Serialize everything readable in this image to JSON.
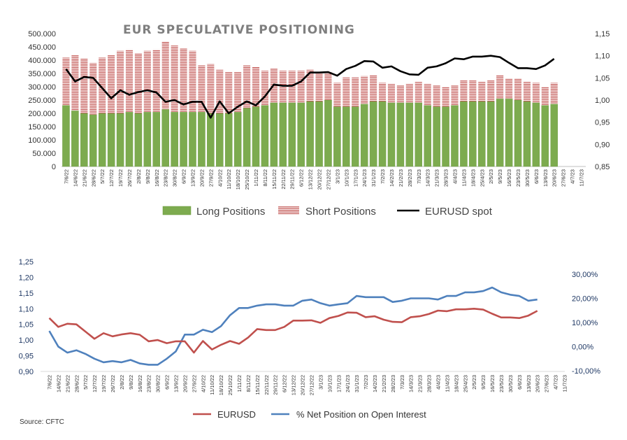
{
  "source": "Source: CFTC",
  "colors": {
    "long": "#7dab4f",
    "long_edge": "#6a9a3f",
    "short_line": "#c0504d",
    "spot": "#000000",
    "eurusd_red": "#c0504d",
    "netpos_blue": "#4f81bd"
  },
  "chart_data": [
    {
      "type": "bar",
      "title": "EUR SPECULATIVE POSITIONING",
      "stacked": true,
      "categories": [
        "7/6/22",
        "14/6/22",
        "21/6/22",
        "28/6/22",
        "5/7/22",
        "12/7/22",
        "19/7/22",
        "26/7/22",
        "2/8/22",
        "9/8/22",
        "16/8/22",
        "23/8/22",
        "30/8/22",
        "6/9/22",
        "13/9/22",
        "20/9/22",
        "27/9/22",
        "4/10/22",
        "11/10/22",
        "18/10/22",
        "25/10/22",
        "1/11/22",
        "8/11/22",
        "15/11/22",
        "22/11/22",
        "29/11/22",
        "6/12/22",
        "13/12/22",
        "20/12/22",
        "27/12/22",
        "3/1/23",
        "10/1/23",
        "17/1/23",
        "24/1/23",
        "31/1/23",
        "7/2/23",
        "14/2/23",
        "21/2/23",
        "28/2/23",
        "7/3/23",
        "14/3/23",
        "21/3/23",
        "28/3/23",
        "4/4/23",
        "11/4/23",
        "18/4/23",
        "25/4/23",
        "2/5/23",
        "9/5/23",
        "16/5/23",
        "23/5/23",
        "30/5/23",
        "6/6/23",
        "13/6/23",
        "20/6/23",
        "27/6/23",
        "4/7/23",
        "11/7/23"
      ],
      "series": [
        {
          "name": "Long Positions",
          "kind": "bar",
          "values": [
            230000,
            210000,
            200000,
            195000,
            200000,
            200000,
            200000,
            205000,
            200000,
            205000,
            205000,
            215000,
            205000,
            205000,
            205000,
            205000,
            200000,
            200000,
            200000,
            205000,
            220000,
            225000,
            230000,
            240000,
            240000,
            240000,
            240000,
            245000,
            245000,
            250000,
            225000,
            225000,
            225000,
            235000,
            245000,
            245000,
            240000,
            240000,
            240000,
            240000,
            230000,
            225000,
            225000,
            230000,
            245000,
            245000,
            245000,
            245000,
            255000,
            255000,
            250000,
            245000,
            240000,
            230000,
            235000,
            null,
            null,
            null
          ]
        },
        {
          "name": "Short Positions",
          "kind": "bar",
          "values": [
            180000,
            210000,
            205000,
            195000,
            210000,
            220000,
            235000,
            235000,
            225000,
            230000,
            235000,
            255000,
            250000,
            240000,
            230000,
            175000,
            185000,
            165000,
            155000,
            150000,
            160000,
            150000,
            130000,
            130000,
            120000,
            120000,
            120000,
            120000,
            110000,
            105000,
            90000,
            110000,
            110000,
            105000,
            100000,
            70000,
            70000,
            65000,
            70000,
            80000,
            80000,
            80000,
            75000,
            75000,
            80000,
            80000,
            75000,
            80000,
            90000,
            75000,
            80000,
            75000,
            75000,
            70000,
            80000,
            null,
            null,
            null
          ]
        },
        {
          "name": "EURUSD spot",
          "kind": "line",
          "axis": "right",
          "values": [
            1.07,
            1.042,
            1.052,
            1.05,
            1.027,
            1.004,
            1.022,
            1.012,
            1.018,
            1.022,
            1.017,
            0.996,
            1.0,
            0.99,
            0.996,
            0.996,
            0.96,
            0.997,
            0.97,
            0.985,
            0.997,
            0.988,
            1.008,
            1.035,
            1.032,
            1.032,
            1.042,
            1.062,
            1.062,
            1.063,
            1.055,
            1.07,
            1.077,
            1.088,
            1.087,
            1.073,
            1.076,
            1.065,
            1.058,
            1.057,
            1.073,
            1.076,
            1.083,
            1.094,
            1.092,
            1.098,
            1.098,
            1.1,
            1.097,
            1.084,
            1.072,
            1.072,
            1.07,
            1.078,
            1.093,
            null,
            null,
            null
          ]
        }
      ],
      "y_left": {
        "ticks": [
          "0",
          "50.000",
          "100.000",
          "150.000",
          "200.000",
          "250.000",
          "300.000",
          "350.000",
          "400.000",
          "450.000",
          "500.000"
        ],
        "range": [
          0,
          500000
        ]
      },
      "y_right": {
        "ticks": [
          "0,85",
          "0,90",
          "0,95",
          "1,00",
          "1,05",
          "1,10",
          "1,15"
        ],
        "range": [
          0.85,
          1.15
        ]
      },
      "legend": [
        "Long Positions",
        "Short Positions",
        "EURUSD spot"
      ],
      "legend_position": "bottom"
    },
    {
      "type": "line",
      "title": "",
      "categories": [
        "7/6/22",
        "14/6/22",
        "21/6/22",
        "28/6/22",
        "5/7/22",
        "12/7/22",
        "19/7/22",
        "26/7/22",
        "2/8/22",
        "9/8/22",
        "16/8/22",
        "23/8/22",
        "30/8/22",
        "6/9/22",
        "13/9/22",
        "20/9/22",
        "27/9/22",
        "4/10/22",
        "11/10/22",
        "18/10/22",
        "25/10/22",
        "1/11/22",
        "8/11/22",
        "15/11/22",
        "22/11/22",
        "29/11/22",
        "6/12/22",
        "13/12/22",
        "20/12/22",
        "27/12/22",
        "3/1/23",
        "10/1/23",
        "17/1/23",
        "24/1/23",
        "31/1/23",
        "7/2/23",
        "14/2/23",
        "21/2/23",
        "28/2/23",
        "7/3/23",
        "14/3/23",
        "21/3/23",
        "28/3/23",
        "4/4/23",
        "11/4/23",
        "18/4/23",
        "25/4/23",
        "2/5/23",
        "9/5/23",
        "16/5/23",
        "23/5/23",
        "30/5/23",
        "6/6/23",
        "13/6/23",
        "20/6/23",
        "27/6/23",
        "4/7/23",
        "11/7/23"
      ],
      "series": [
        {
          "name": "EURUSD",
          "axis": "left",
          "values": [
            1.07,
            1.042,
            1.052,
            1.05,
            1.027,
            1.004,
            1.022,
            1.012,
            1.018,
            1.022,
            1.017,
            0.996,
            1.0,
            0.99,
            0.996,
            0.996,
            0.96,
            0.997,
            0.97,
            0.985,
            0.997,
            0.988,
            1.008,
            1.035,
            1.032,
            1.032,
            1.042,
            1.062,
            1.062,
            1.063,
            1.055,
            1.07,
            1.077,
            1.088,
            1.087,
            1.073,
            1.076,
            1.065,
            1.058,
            1.057,
            1.073,
            1.076,
            1.083,
            1.094,
            1.092,
            1.098,
            1.098,
            1.1,
            1.097,
            1.084,
            1.072,
            1.072,
            1.07,
            1.078,
            1.093,
            null,
            null,
            null
          ]
        },
        {
          "name": "% Net Position on Open Interest",
          "axis": "right",
          "values": [
            6.5,
            0.0,
            -2.5,
            -1.5,
            -3.0,
            -5.0,
            -6.5,
            -6.0,
            -6.5,
            -5.5,
            -7.0,
            -7.5,
            -7.5,
            -5.0,
            -2.0,
            5.0,
            5.0,
            7.0,
            6.0,
            8.5,
            13.0,
            16.0,
            16.0,
            17.0,
            17.5,
            17.5,
            17.0,
            17.0,
            19.0,
            19.5,
            18.0,
            17.0,
            17.5,
            18.0,
            21.0,
            20.5,
            20.5,
            20.5,
            18.5,
            19.0,
            20.0,
            20.0,
            20.0,
            19.5,
            21.0,
            21.0,
            22.5,
            22.5,
            23.0,
            24.5,
            22.5,
            21.5,
            21.0,
            19.0,
            19.5,
            null,
            null,
            null
          ]
        }
      ],
      "y_left": {
        "ticks": [
          "0,90",
          "0,95",
          "1,00",
          "1,05",
          "1,10",
          "1,15",
          "1,20",
          "1,25"
        ],
        "range": [
          0.9,
          1.25
        ]
      },
      "y_right": {
        "ticks": [
          "-10,00%",
          "0,00%",
          "10,00%",
          "20,00%",
          "30,00%"
        ],
        "range": [
          -10,
          30
        ]
      },
      "legend": [
        "EURUSD",
        "% Net Position on Open Interest"
      ],
      "legend_position": "bottom"
    }
  ]
}
